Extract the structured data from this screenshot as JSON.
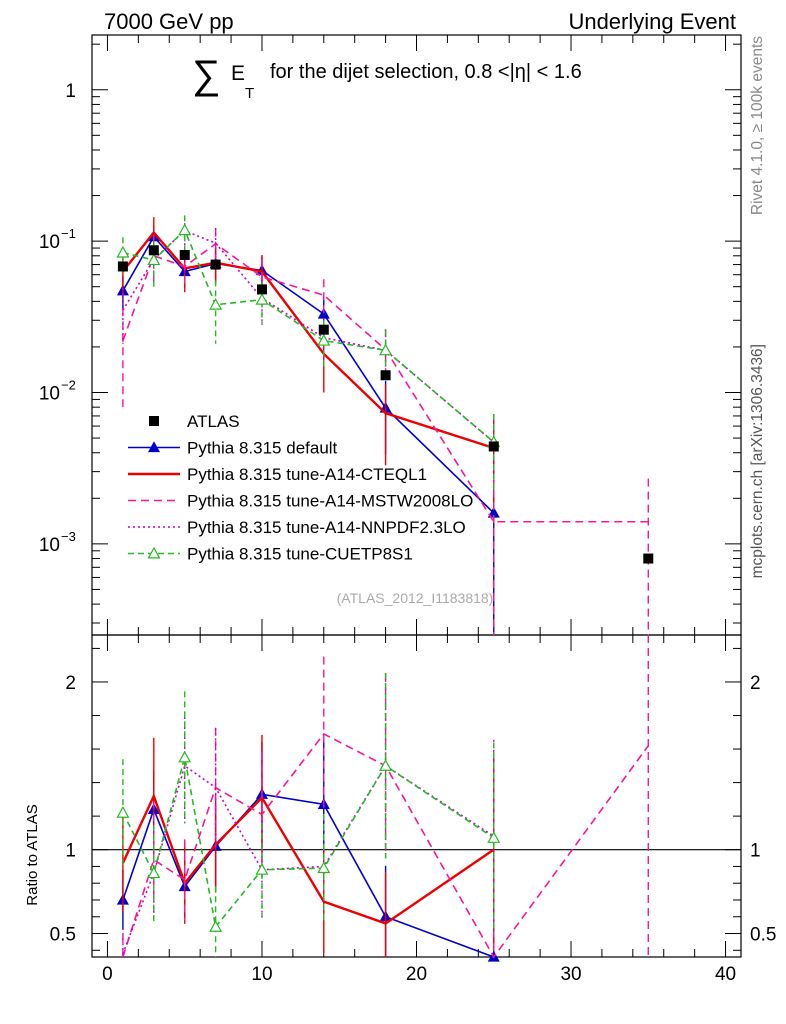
{
  "header": {
    "left": "7000 GeV pp",
    "right": "Underlying Event"
  },
  "side_labels": {
    "rivet": "Rivet 4.1.0, ≥ 100k events",
    "mcplots": "mcplots.cern.ch [arXiv:1306.3436]"
  },
  "chart_data": {
    "type": "line",
    "title": {
      "sigma": "∑",
      "e": "E",
      "t": "T",
      "rest": "for the dijet selection, 0.8 <|η| < 1.6"
    },
    "watermark": "(ATLAS_2012_I1183818)",
    "xlabel": "",
    "xlim": [
      -1,
      41
    ],
    "xticks": [
      0,
      10,
      20,
      30,
      40
    ],
    "xtick_labels": [
      "0",
      "10",
      "20",
      "30",
      "40"
    ],
    "main": {
      "yscale": "log",
      "ylim": [
        0.00025,
        2.3
      ],
      "yticks": [
        {
          "value": 1,
          "base": "1",
          "exp": ""
        },
        {
          "value": 0.1,
          "base": "10",
          "exp": "−1"
        },
        {
          "value": 0.01,
          "base": "10",
          "exp": "−2"
        },
        {
          "value": 0.001,
          "base": "10",
          "exp": "−3"
        }
      ]
    },
    "ratio": {
      "ylabel": "Ratio to ATLAS",
      "ylim": [
        0.36,
        2.28
      ],
      "yticks": [
        0.5,
        1,
        2
      ],
      "ytick_labels": [
        "0.5",
        "1",
        "2"
      ],
      "ref_line": 1
    },
    "data": {
      "name": "ATLAS",
      "x": [
        1,
        3,
        5,
        7,
        10,
        14,
        18,
        25,
        35
      ],
      "y": [
        0.068,
        0.087,
        0.081,
        0.07,
        0.048,
        0.026,
        0.013,
        0.0044,
        0.0008
      ]
    },
    "series": [
      {
        "name": "Pythia 8.315 default",
        "color": "#0000cc",
        "dash": "",
        "marker": "triangle-filled",
        "x": [
          1,
          3,
          5,
          7,
          10,
          14,
          18,
          25
        ],
        "y": [
          0.047,
          0.107,
          0.063,
          0.071,
          0.064,
          0.033,
          0.0079,
          0.0016
        ],
        "err": [
          0.012,
          0.02,
          0.015,
          0.017,
          0.015,
          0.01,
          0.004,
          0.002
        ],
        "ratio": [
          0.7,
          1.24,
          0.78,
          1.02,
          1.33,
          1.27,
          0.6,
          0.3
        ]
      },
      {
        "name": "Pythia 8.315 tune-A14-CTEQL1",
        "color": "#ee0000",
        "dash": "",
        "marker": "none",
        "x": [
          1,
          3,
          5,
          7,
          10,
          14,
          18,
          25
        ],
        "y": [
          0.063,
          0.114,
          0.066,
          0.072,
          0.063,
          0.018,
          0.0073,
          0.0043
        ],
        "err": [
          0.02,
          0.03,
          0.02,
          0.02,
          0.018,
          0.008,
          0.004,
          0.0025
        ],
        "ratio": [
          0.92,
          1.32,
          0.8,
          1.03,
          1.31,
          0.69,
          0.56,
          1.0
        ]
      },
      {
        "name": "Pythia 8.315 tune-A14-MSTW2008LO",
        "color": "#ff1493",
        "dash": "8,5",
        "marker": "none",
        "x": [
          1,
          3,
          5,
          7,
          10,
          14,
          18,
          25,
          35
        ],
        "y": [
          0.022,
          0.08,
          0.068,
          0.096,
          0.058,
          0.044,
          0.0192,
          0.0014,
          0.0014
        ],
        "err": [
          0.014,
          0.03,
          0.02,
          0.025,
          0.018,
          0.012,
          0.007,
          0.0014,
          0.0013
        ],
        "ratio": [
          0.3,
          0.94,
          0.82,
          1.37,
          1.21,
          1.69,
          1.5,
          0.3,
          1.62
        ]
      },
      {
        "name": "Pythia 8.315 tune-A14-NNPDF2.3LO",
        "color": "#cc00cc",
        "dash": "2,3",
        "marker": "none",
        "x": [
          1,
          3,
          5,
          7,
          10,
          14,
          18,
          25
        ],
        "y": [
          0.035,
          0.076,
          0.117,
          0.097,
          0.042,
          0.023,
          0.019,
          0.0047
        ],
        "err": [
          0.014,
          0.025,
          0.025,
          0.025,
          0.014,
          0.008,
          0.007,
          0.0025
        ],
        "ratio": [
          0.38,
          0.86,
          1.5,
          1.37,
          0.88,
          0.9,
          1.5,
          1.08
        ]
      },
      {
        "name": "Pythia 8.315 tune-CUETP8S1",
        "color": "#22bb22",
        "dash": "6,4",
        "marker": "triangle-open",
        "x": [
          1,
          3,
          5,
          7,
          10,
          14,
          18,
          25
        ],
        "y": [
          0.084,
          0.075,
          0.118,
          0.038,
          0.041,
          0.022,
          0.019,
          0.0047
        ],
        "err": [
          0.022,
          0.025,
          0.03,
          0.017,
          0.013,
          0.008,
          0.007,
          0.0025
        ],
        "ratio": [
          1.22,
          0.86,
          1.55,
          0.54,
          0.88,
          0.89,
          1.5,
          1.07
        ]
      }
    ]
  }
}
